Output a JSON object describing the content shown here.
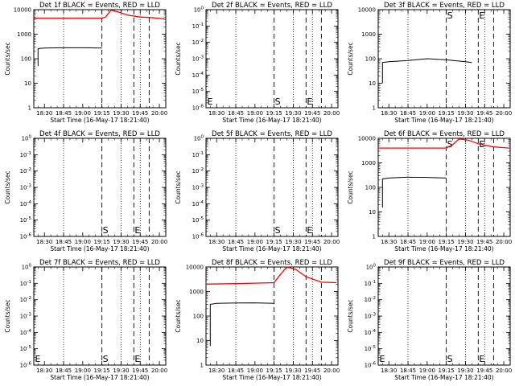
{
  "colors": {
    "events": "#000000",
    "lld": "#ff0000",
    "axes": "#000000"
  },
  "x_ticks": [
    "18:30",
    "18:45",
    "19:00",
    "19:15",
    "19:30",
    "19:45",
    "20:00"
  ],
  "x_label": "Start Time (16-May-17 18:21:40)",
  "y_label": "Counts/sec",
  "y_ticks_data": [
    "1",
    "10",
    "100",
    "1000",
    "10000"
  ],
  "y_ticks_nodata": [
    "10^0",
    "10^-1",
    "10^-2",
    "10^-3",
    "10^-4",
    "10^-5",
    "10^-6"
  ],
  "chart_data": [
    {
      "type": "line",
      "title": "Det 1f BLACK = Events, RED = LLD",
      "has_data": true,
      "xlim": [
        "18:21:40",
        "20:05"
      ],
      "ylim": [
        1,
        10000
      ],
      "yscale": "log",
      "dashed_lines": [
        "19:15",
        "19:40",
        "19:52"
      ],
      "dotted_lines": [
        "18:45",
        "19:30",
        "19:45"
      ],
      "markers": [],
      "series": [
        {
          "color": "#000000",
          "points": [
            [
              "18:25",
              50
            ],
            [
              "18:25",
              250
            ],
            [
              "18:26",
              260
            ],
            [
              "18:30",
              270
            ],
            [
              "18:45",
              280
            ],
            [
              "19:00",
              280
            ],
            [
              "19:15",
              270
            ]
          ]
        },
        {
          "color": "#ff0000",
          "points": [
            [
              "18:21:40",
              4500
            ],
            [
              "19:15",
              4500
            ],
            [
              "19:18",
              5000
            ],
            [
              "19:22",
              9500
            ],
            [
              "19:28",
              8000
            ],
            [
              "19:35",
              6000
            ],
            [
              "19:45",
              5000
            ],
            [
              "19:52",
              4800
            ],
            [
              "20:04",
              4200
            ]
          ]
        }
      ]
    },
    {
      "type": "line",
      "title": "Det 2f BLACK = Events, RED = LLD",
      "has_data": false,
      "xlim": [
        "18:21:40",
        "20:05"
      ],
      "ylim": [
        1e-06,
        1
      ],
      "yscale": "log",
      "dashed_lines": [
        "19:15",
        "19:40",
        "19:52"
      ],
      "dotted_lines": [
        "18:45",
        "19:30",
        "19:45"
      ],
      "markers": [
        {
          "text": "E",
          "x": "18:22"
        },
        {
          "text": "S",
          "x": "19:15"
        },
        {
          "text": "E",
          "x": "19:40"
        }
      ],
      "series": []
    },
    {
      "type": "line",
      "title": "Det 3f BLACK = Events, RED = LLD",
      "has_data": true,
      "xlim": [
        "18:21:40",
        "20:05"
      ],
      "ylim": [
        1,
        10000
      ],
      "yscale": "log",
      "dashed_lines": [
        "19:15",
        "19:40",
        "19:52"
      ],
      "dotted_lines": [
        "18:45",
        "19:30",
        "19:45"
      ],
      "markers": [
        {
          "text": "S",
          "x": "19:15"
        },
        {
          "text": "E",
          "x": "19:40"
        }
      ],
      "series": [
        {
          "color": "#000000",
          "points": [
            [
              "18:25",
              10
            ],
            [
              "18:25",
              70
            ],
            [
              "18:30",
              75
            ],
            [
              "18:45",
              85
            ],
            [
              "19:00",
              100
            ],
            [
              "19:15",
              90
            ],
            [
              "19:30",
              75
            ],
            [
              "19:35",
              70
            ]
          ]
        }
      ]
    },
    {
      "type": "line",
      "title": "Det 4f BLACK = Events, RED = LLD",
      "has_data": false,
      "xlim": [
        "18:21:40",
        "20:05"
      ],
      "ylim": [
        1e-06,
        1
      ],
      "yscale": "log",
      "dashed_lines": [
        "19:15",
        "19:40",
        "19:52"
      ],
      "dotted_lines": [
        "18:45",
        "19:30",
        "19:45"
      ],
      "markers": [
        {
          "text": "S",
          "x": "19:15"
        },
        {
          "text": "E",
          "x": "19:40"
        }
      ],
      "series": []
    },
    {
      "type": "line",
      "title": "Det 5f BLACK = Events, RED = LLD",
      "has_data": false,
      "xlim": [
        "18:21:40",
        "20:05"
      ],
      "ylim": [
        1e-06,
        1
      ],
      "yscale": "log",
      "dashed_lines": [
        "19:15",
        "19:40",
        "19:52"
      ],
      "dotted_lines": [
        "18:45",
        "19:30",
        "19:45"
      ],
      "markers": [
        {
          "text": "S",
          "x": "19:15"
        },
        {
          "text": "E",
          "x": "19:40"
        }
      ],
      "series": []
    },
    {
      "type": "line",
      "title": "Det 6f BLACK = Events, RED = LLD",
      "has_data": true,
      "xlim": [
        "18:21:40",
        "20:05"
      ],
      "ylim": [
        1,
        10000
      ],
      "yscale": "log",
      "dashed_lines": [
        "19:15",
        "19:40",
        "19:52"
      ],
      "dotted_lines": [
        "18:45",
        "19:30",
        "19:45"
      ],
      "markers": [
        {
          "text": "S",
          "x": "19:15"
        },
        {
          "text": "E",
          "x": "19:40"
        }
      ],
      "series": [
        {
          "color": "#000000",
          "points": [
            [
              "18:25",
              15
            ],
            [
              "18:25",
              220
            ],
            [
              "18:30",
              240
            ],
            [
              "18:45",
              260
            ],
            [
              "19:00",
              255
            ],
            [
              "19:15",
              240
            ]
          ]
        },
        {
          "color": "#ff0000",
          "points": [
            [
              "18:21:40",
              4000
            ],
            [
              "19:15",
              4000
            ],
            [
              "19:20",
              5500
            ],
            [
              "19:25",
              9500
            ],
            [
              "19:32",
              8500
            ],
            [
              "19:40",
              6000
            ],
            [
              "19:45",
              5200
            ],
            [
              "19:52",
              4500
            ],
            [
              "20:04",
              4000
            ]
          ]
        }
      ]
    },
    {
      "type": "line",
      "title": "Det 7f BLACK = Events, RED = LLD",
      "has_data": false,
      "xlim": [
        "18:21:40",
        "20:05"
      ],
      "ylim": [
        1e-06,
        1
      ],
      "yscale": "log",
      "dashed_lines": [
        "19:15",
        "19:40",
        "19:52"
      ],
      "dotted_lines": [
        "18:45",
        "19:30",
        "19:45"
      ],
      "markers": [
        {
          "text": "E",
          "x": "18:22"
        },
        {
          "text": "S",
          "x": "19:15"
        },
        {
          "text": "E",
          "x": "19:40"
        }
      ],
      "series": []
    },
    {
      "type": "line",
      "title": "Det 8f BLACK = Events, RED = LLD",
      "has_data": true,
      "xlim": [
        "18:21:40",
        "20:05"
      ],
      "ylim": [
        1,
        10000
      ],
      "yscale": "log",
      "dashed_lines": [
        "19:15",
        "19:40",
        "19:52"
      ],
      "dotted_lines": [
        "18:45",
        "19:30",
        "19:45"
      ],
      "markers": [],
      "series": [
        {
          "color": "#000000",
          "points": [
            [
              "18:25",
              6
            ],
            [
              "18:25",
              300
            ],
            [
              "18:30",
              330
            ],
            [
              "18:45",
              340
            ],
            [
              "19:00",
              345
            ],
            [
              "19:15",
              330
            ]
          ]
        },
        {
          "color": "#ff0000",
          "points": [
            [
              "18:21:40",
              2000
            ],
            [
              "18:45",
              2100
            ],
            [
              "19:00",
              2200
            ],
            [
              "19:15",
              2300
            ],
            [
              "19:20",
              5000
            ],
            [
              "19:25",
              10000
            ],
            [
              "19:32",
              8000
            ],
            [
              "19:40",
              4000
            ],
            [
              "19:52",
              2400
            ],
            [
              "20:04",
              2300
            ]
          ]
        }
      ]
    },
    {
      "type": "line",
      "title": "Det 9f BLACK = Events, RED = LLD",
      "has_data": false,
      "xlim": [
        "18:21:40",
        "20:05"
      ],
      "ylim": [
        1e-06,
        1
      ],
      "yscale": "log",
      "dashed_lines": [
        "19:15",
        "19:40",
        "19:52"
      ],
      "dotted_lines": [
        "18:45",
        "19:30",
        "19:45"
      ],
      "markers": [
        {
          "text": "E",
          "x": "18:22"
        },
        {
          "text": "S",
          "x": "19:15"
        },
        {
          "text": "E",
          "x": "19:40"
        }
      ],
      "series": []
    }
  ]
}
